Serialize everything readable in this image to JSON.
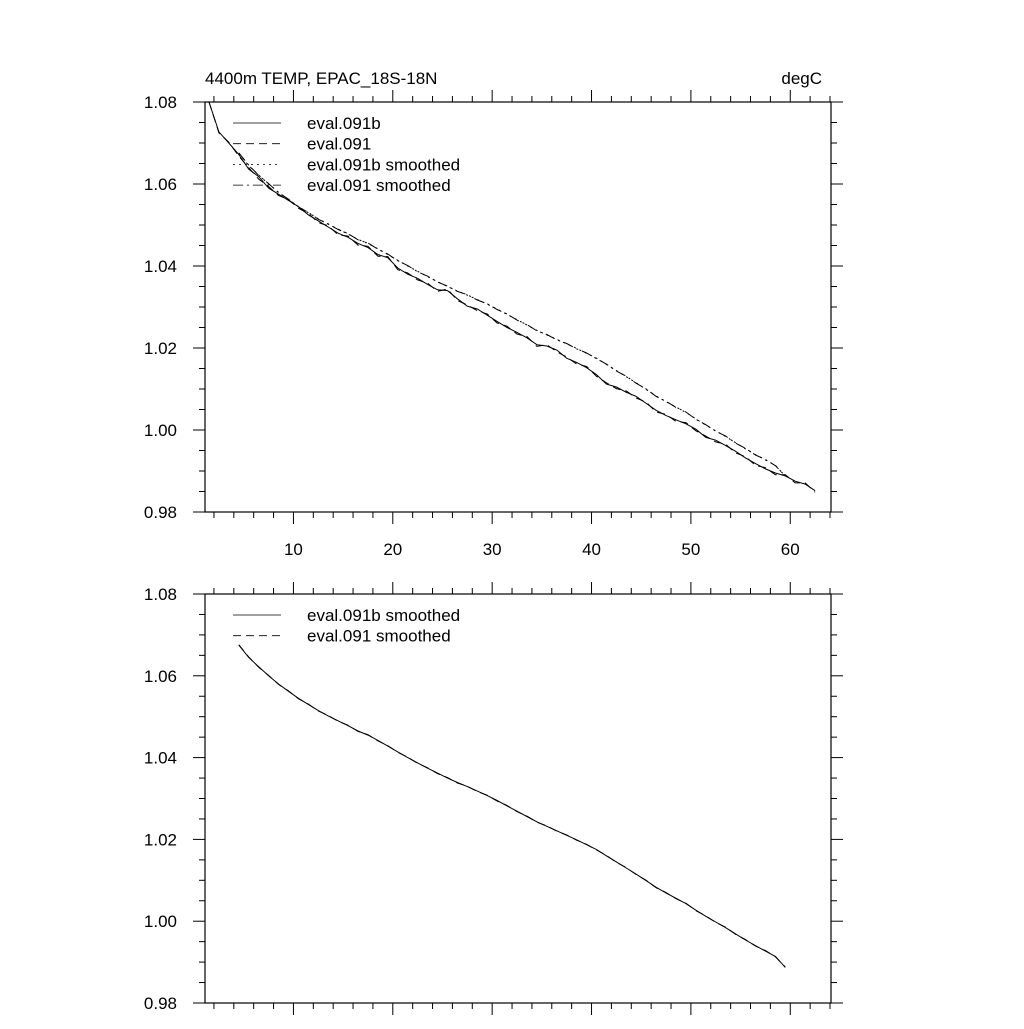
{
  "chart_data": [
    {
      "type": "line",
      "title_left": "4400m TEMP, EPAC_18S-18N",
      "title_right": "degC",
      "xlim": [
        1.1,
        64.1
      ],
      "ylim": [
        0.98,
        1.08
      ],
      "xticks": [
        10,
        20,
        30,
        40,
        50,
        60
      ],
      "xtick_labels": [
        "10",
        "20",
        "30",
        "40",
        "50",
        "60"
      ],
      "yticks": [
        0.98,
        1.0,
        1.02,
        1.04,
        1.06,
        1.08
      ],
      "ytick_labels": [
        "0.98",
        "1.00",
        "1.02",
        "1.04",
        "1.06",
        "1.08"
      ],
      "grid": false,
      "legend_placement": "top-left",
      "series": [
        {
          "name": "eval.091b",
          "dash": "solid",
          "x_start": 1.5,
          "x_step": 1,
          "values": [
            1.08,
            1.0727,
            1.07,
            1.0672,
            1.0636,
            1.0618,
            1.059,
            1.0575,
            1.056,
            1.0545,
            1.0525,
            1.051,
            1.0495,
            1.048,
            1.047,
            1.0455,
            1.0445,
            1.0428,
            1.042,
            1.0395,
            1.038,
            1.037,
            1.0355,
            1.0342,
            1.034,
            1.032,
            1.0302,
            1.0295,
            1.028,
            1.0265,
            1.025,
            1.0238,
            1.0225,
            1.0208,
            1.0205,
            1.0195,
            1.0175,
            1.0165,
            1.0152,
            1.0135,
            1.0112,
            1.0105,
            1.0092,
            1.0082,
            1.0065,
            1.0048,
            1.0035,
            1.0025,
            1.0015,
            1.0002,
            0.9982,
            0.9975,
            0.9962,
            0.9948,
            0.9932,
            0.9918,
            0.9905,
            0.9895,
            0.9888,
            0.9875,
            0.9868,
            0.9852
          ]
        },
        {
          "name": "eval.091",
          "dash": "dashed",
          "x_start": 1.5,
          "x_step": 1,
          "values": [
            1.08,
            1.0725,
            1.0702,
            1.0668,
            1.064,
            1.0612,
            1.0594,
            1.0572,
            1.0562,
            1.0541,
            1.0528,
            1.0506,
            1.0498,
            1.0476,
            1.0473,
            1.0451,
            1.0448,
            1.0424,
            1.0423,
            1.0391,
            1.0383,
            1.0366,
            1.0358,
            1.0338,
            1.0344,
            1.0316,
            1.0305,
            1.0291,
            1.0283,
            1.0261,
            1.0253,
            1.0234,
            1.0228,
            1.0204,
            1.0208,
            1.0191,
            1.0178,
            1.0161,
            1.0155,
            1.0131,
            1.0115,
            1.0101,
            1.0095,
            1.0078,
            1.0068,
            1.0044,
            1.0038,
            1.0021,
            1.0018,
            0.9998,
            0.9985,
            0.9971,
            0.9965,
            0.9944,
            0.9935,
            0.9914,
            0.9908,
            0.9891,
            0.9891,
            0.9871,
            0.9871,
            0.9848
          ]
        },
        {
          "name": "eval.091b smoothed",
          "dash": "dotted",
          "x_start": 4.5,
          "x_step": 1,
          "values": [
            1.0675,
            1.0645,
            1.0622,
            1.06,
            1.058,
            1.0562,
            1.0545,
            1.053,
            1.0515,
            1.0502,
            1.049,
            1.0478,
            1.0465,
            1.0455,
            1.0442,
            1.0428,
            1.0414,
            1.04,
            1.0387,
            1.0374,
            1.0362,
            1.035,
            1.0339,
            1.0329,
            1.0318,
            1.0307,
            1.0295,
            1.0282,
            1.0269,
            1.0256,
            1.0243,
            1.0232,
            1.0221,
            1.021,
            1.0199,
            1.0187,
            1.0175,
            1.016,
            1.0145,
            1.013,
            1.0115,
            1.0099,
            1.0083,
            1.0069,
            1.0056,
            1.0043,
            1.0027,
            1.0012,
            0.9998,
            0.9984,
            0.9969,
            0.9954,
            0.994,
            0.9927,
            0.9914,
            0.9887
          ]
        },
        {
          "name": "eval.091 smoothed",
          "dash": "dashdot",
          "x_start": 4.5,
          "x_step": 1,
          "values": [
            1.0676,
            1.0646,
            1.0621,
            1.0601,
            1.0579,
            1.0563,
            1.0544,
            1.0531,
            1.0514,
            1.0503,
            1.0489,
            1.0479,
            1.0464,
            1.0456,
            1.0441,
            1.0429,
            1.0413,
            1.0401,
            1.0386,
            1.0375,
            1.0361,
            1.0351,
            1.0338,
            1.033,
            1.0317,
            1.0308,
            1.0294,
            1.0283,
            1.0268,
            1.0257,
            1.0242,
            1.0233,
            1.022,
            1.0211,
            1.0198,
            1.0188,
            1.0174,
            1.0161,
            1.0144,
            1.0131,
            1.0114,
            1.01,
            1.0082,
            1.007,
            1.0055,
            1.0044,
            1.0026,
            1.0013,
            0.9997,
            0.9985,
            0.9968,
            0.9955,
            0.9939,
            0.9928,
            0.9913,
            0.9888
          ]
        }
      ]
    },
    {
      "type": "line",
      "xlim": [
        1.1,
        64.1
      ],
      "ylim": [
        0.98,
        1.08
      ],
      "xticks": [
        10,
        20,
        30,
        40,
        50,
        60
      ],
      "yticks": [
        0.98,
        1.0,
        1.02,
        1.04,
        1.06,
        1.08
      ],
      "ytick_labels": [
        "0.98",
        "1.00",
        "1.02",
        "1.04",
        "1.06",
        "1.08"
      ],
      "grid": false,
      "legend_placement": "top-left",
      "series": [
        {
          "name": "eval.091b smoothed",
          "dash": "solid",
          "x_start": 4.5,
          "x_step": 1,
          "values": [
            1.0675,
            1.0645,
            1.0622,
            1.06,
            1.058,
            1.0562,
            1.0545,
            1.053,
            1.0515,
            1.0502,
            1.049,
            1.0478,
            1.0465,
            1.0455,
            1.0442,
            1.0428,
            1.0414,
            1.04,
            1.0387,
            1.0374,
            1.0362,
            1.035,
            1.0339,
            1.0329,
            1.0318,
            1.0307,
            1.0295,
            1.0282,
            1.0269,
            1.0256,
            1.0243,
            1.0232,
            1.0221,
            1.021,
            1.0199,
            1.0187,
            1.0175,
            1.016,
            1.0145,
            1.013,
            1.0115,
            1.0099,
            1.0083,
            1.0069,
            1.0056,
            1.0043,
            1.0027,
            1.0012,
            0.9998,
            0.9984,
            0.9969,
            0.9954,
            0.994,
            0.9927,
            0.9914,
            0.9887
          ]
        },
        {
          "name": "eval.091 smoothed",
          "dash": "dashed",
          "x_start": 4.5,
          "x_step": 1,
          "values": [
            1.0676,
            1.0646,
            1.0621,
            1.0601,
            1.0579,
            1.0563,
            1.0544,
            1.0531,
            1.0514,
            1.0503,
            1.0489,
            1.0479,
            1.0464,
            1.0456,
            1.0441,
            1.0429,
            1.0413,
            1.0401,
            1.0386,
            1.0375,
            1.0361,
            1.0351,
            1.0338,
            1.033,
            1.0317,
            1.0308,
            1.0294,
            1.0283,
            1.0268,
            1.0257,
            1.0242,
            1.0233,
            1.022,
            1.0211,
            1.0198,
            1.0188,
            1.0174,
            1.0161,
            1.0144,
            1.0131,
            1.0114,
            1.01,
            1.0082,
            1.007,
            1.0055,
            1.0044,
            1.0026,
            1.0013,
            0.9997,
            0.9985,
            0.9968,
            0.9955,
            0.9939,
            0.9928,
            0.9913,
            0.9888
          ]
        }
      ]
    }
  ]
}
